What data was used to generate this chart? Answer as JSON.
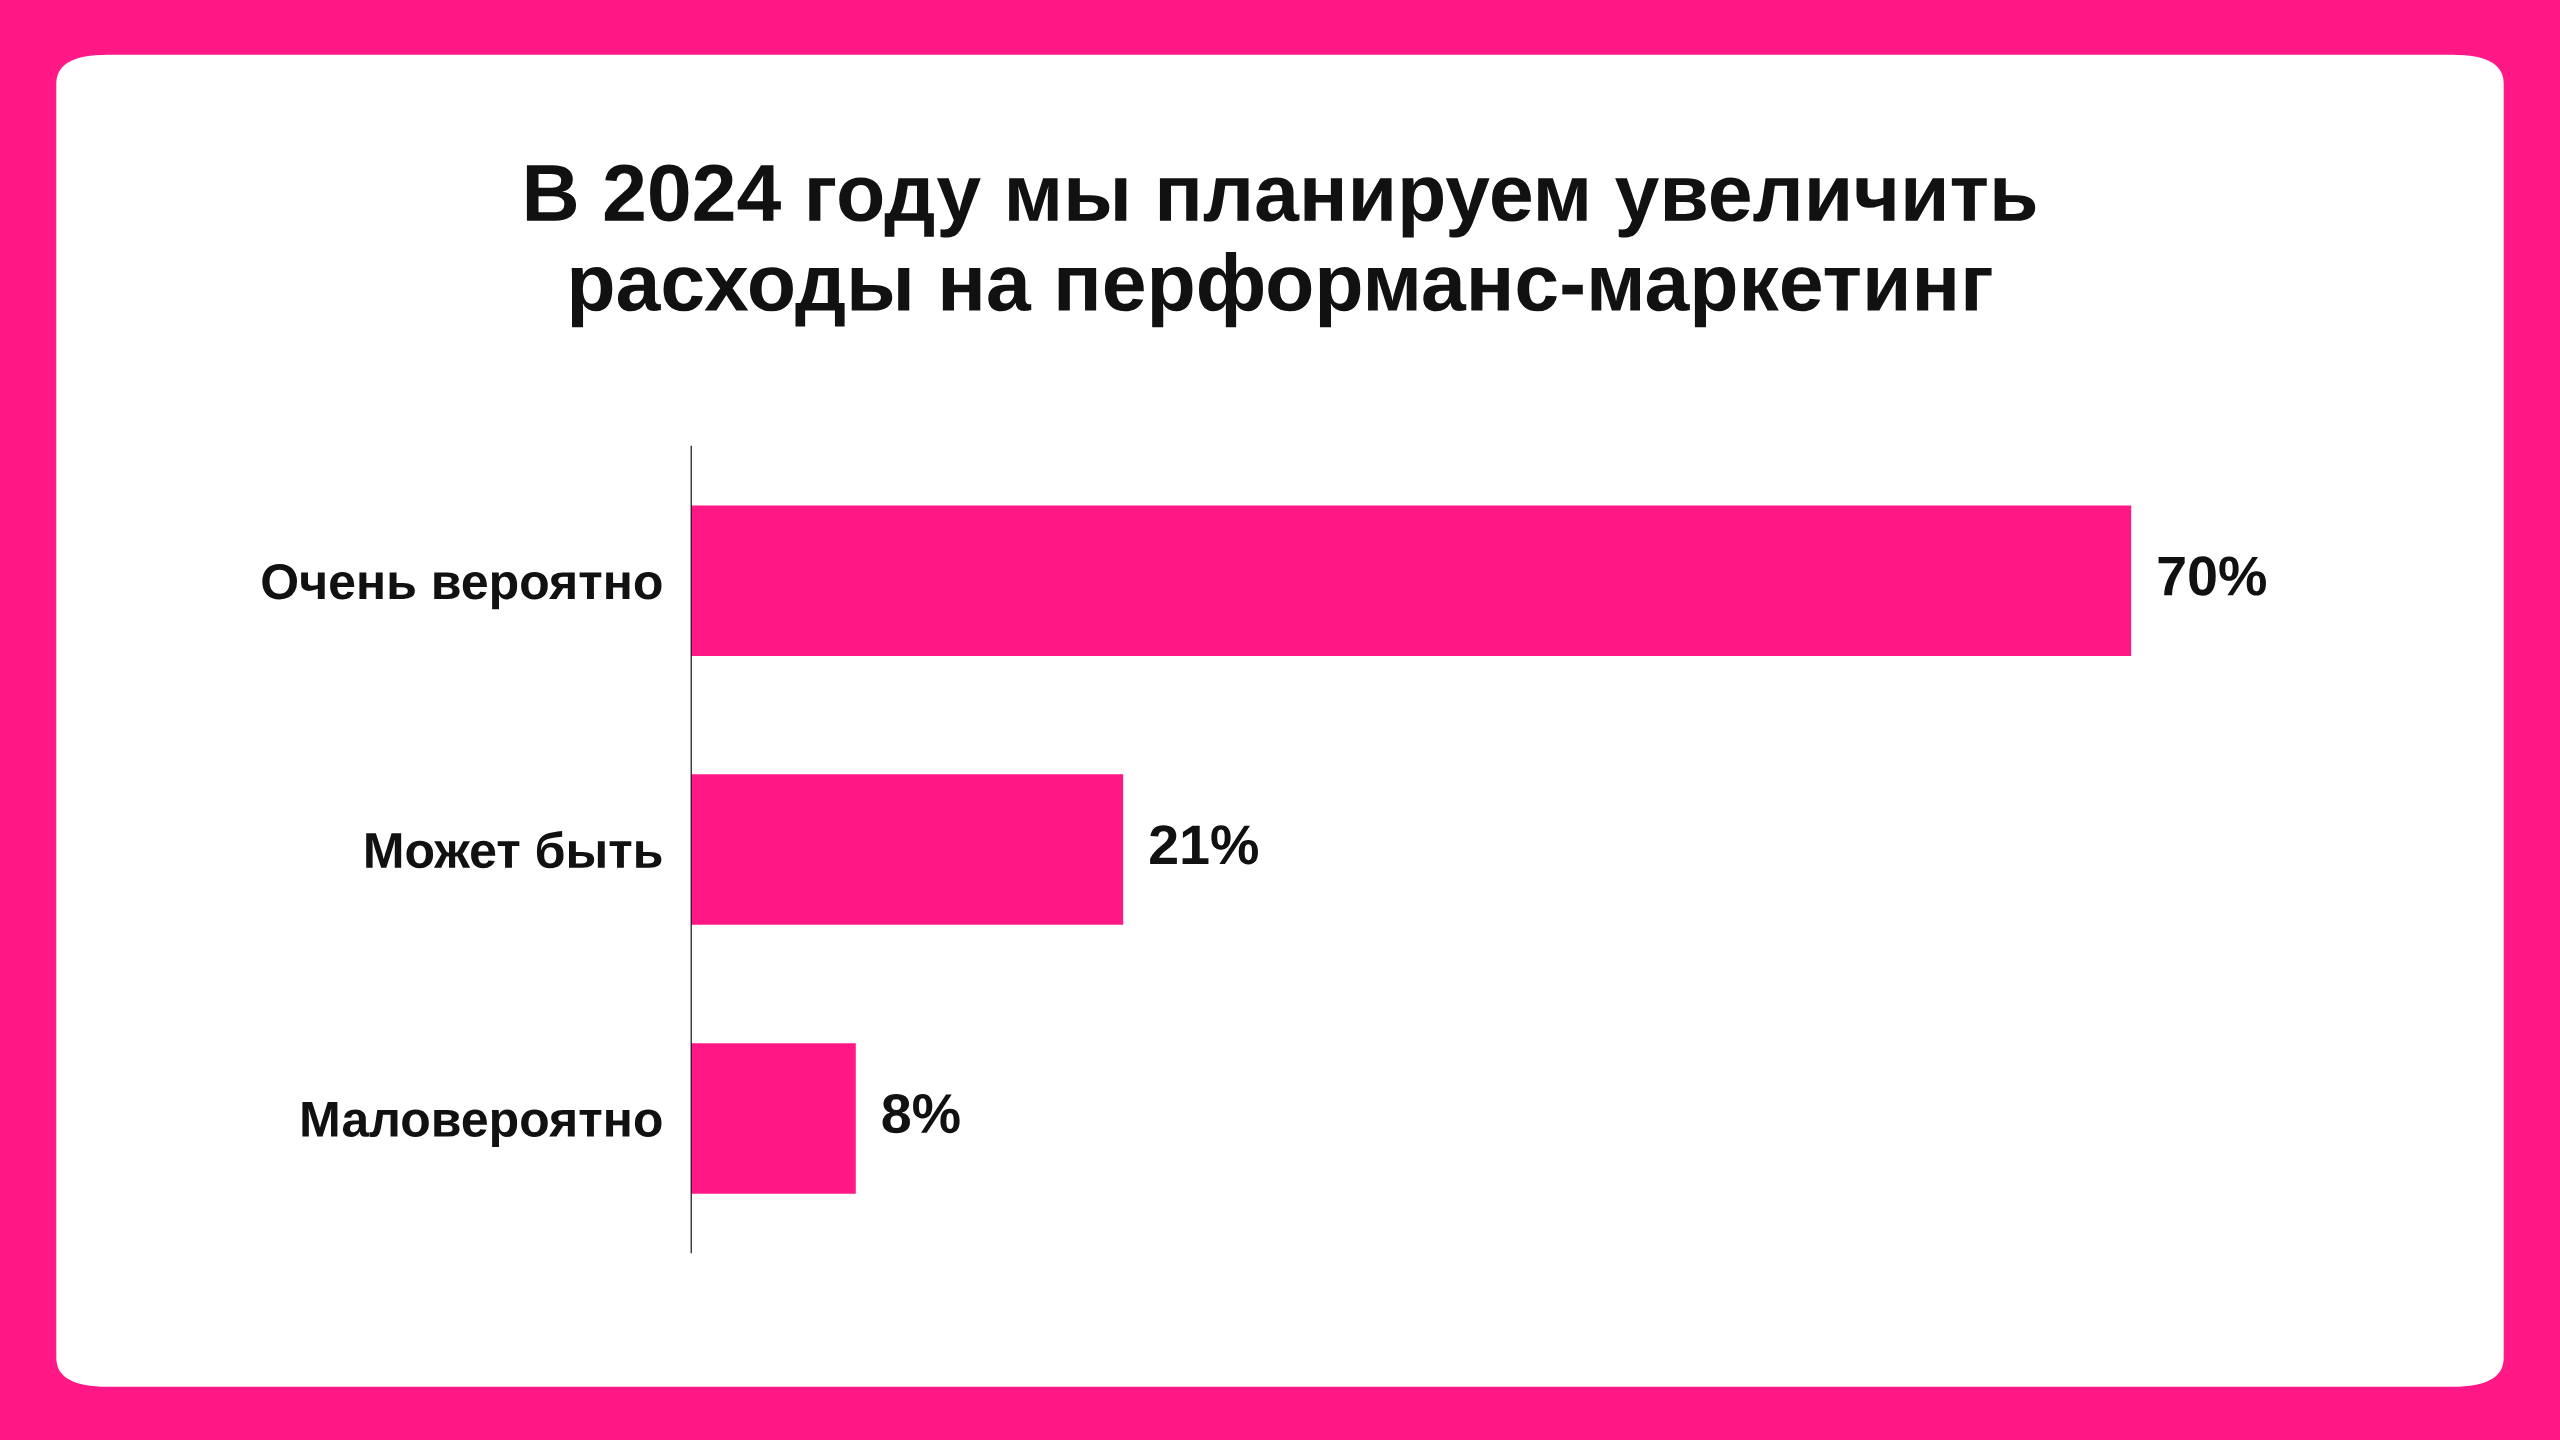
{
  "chart_data": {
    "type": "bar",
    "orientation": "horizontal",
    "title": "В 2024 году мы планируем увеличить\nрасходы на перформанс-маркетинг",
    "categories": [
      "Очень вероятно",
      "Может быть",
      "Маловероятно"
    ],
    "series": [
      {
        "color": "#ff1886",
        "values": [
          70,
          21,
          8
        ],
        "value_labels": [
          "70%",
          "21%",
          "8%"
        ]
      }
    ]
  }
}
